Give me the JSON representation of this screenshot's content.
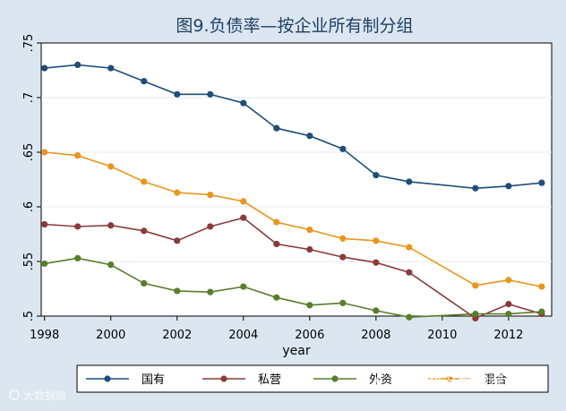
{
  "chart_data": {
    "type": "line",
    "title": "图9.负债率—按企业所有制分组",
    "xlabel": "year",
    "ylabel": "",
    "xlim": [
      1997.9,
      2013.3
    ],
    "ylim": [
      0.5,
      0.75
    ],
    "x_ticks": [
      1998,
      2000,
      2002,
      2004,
      2006,
      2008,
      2010,
      2012
    ],
    "x_tick_labels": [
      "1998",
      "2000",
      "2002",
      "2004",
      "2006",
      "2008",
      "2010",
      "2012"
    ],
    "y_ticks": [
      0.5,
      0.55,
      0.6,
      0.65,
      0.7,
      0.75
    ],
    "y_tick_labels": [
      ".5",
      ".55",
      ".6",
      ".65",
      ".7",
      ".75"
    ],
    "grid": "horizontal",
    "legend_position": "bottom",
    "series": [
      {
        "name": "国有",
        "color": "#1f4e79",
        "x": [
          1998,
          1999,
          2000,
          2001,
          2002,
          2003,
          2004,
          2005,
          2006,
          2007,
          2008,
          2009,
          2011,
          2012,
          2013
        ],
        "values": [
          0.727,
          0.73,
          0.727,
          0.715,
          0.703,
          0.703,
          0.695,
          0.672,
          0.665,
          0.653,
          0.629,
          0.623,
          0.617,
          0.619,
          0.622
        ]
      },
      {
        "name": "私营",
        "color": "#8b3a3a",
        "x": [
          1998,
          1999,
          2000,
          2001,
          2002,
          2003,
          2004,
          2005,
          2006,
          2007,
          2008,
          2009,
          2011,
          2012,
          2013
        ],
        "values": [
          0.584,
          0.582,
          0.583,
          0.578,
          0.569,
          0.582,
          0.59,
          0.566,
          0.561,
          0.554,
          0.549,
          0.54,
          0.498,
          0.511,
          0.502
        ]
      },
      {
        "name": "外资",
        "color": "#5a7d2a",
        "x": [
          1998,
          1999,
          2000,
          2001,
          2002,
          2003,
          2004,
          2005,
          2006,
          2007,
          2008,
          2009,
          2011,
          2012,
          2013
        ],
        "values": [
          0.548,
          0.553,
          0.547,
          0.53,
          0.523,
          0.522,
          0.527,
          0.517,
          0.51,
          0.512,
          0.505,
          0.499,
          0.502,
          0.502,
          0.504
        ]
      },
      {
        "name": "混合",
        "color": "#e8961e",
        "x": [
          1998,
          1999,
          2000,
          2001,
          2002,
          2003,
          2004,
          2005,
          2006,
          2007,
          2008,
          2009,
          2011,
          2012,
          2013
        ],
        "values": [
          0.65,
          0.647,
          0.637,
          0.623,
          0.613,
          0.611,
          0.605,
          0.586,
          0.579,
          0.571,
          0.569,
          0.563,
          0.528,
          0.533,
          0.527
        ]
      }
    ]
  },
  "watermarks": {
    "left": "大数据局",
    "right": "浙商资产金融评论"
  }
}
